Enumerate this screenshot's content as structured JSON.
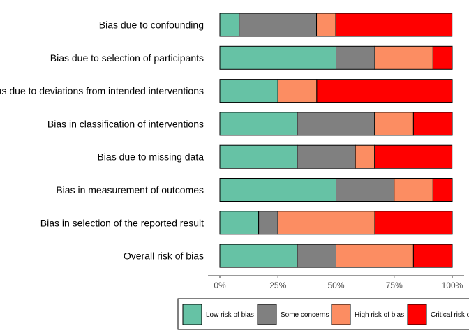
{
  "chart_data": {
    "type": "bar",
    "orientation": "horizontal",
    "stacked": true,
    "categories": [
      "Bias due to confounding",
      "Bias due to selection of participants",
      "Bias due to deviations from intended interventions",
      "Bias in classification of interventions",
      "Bias due to missing data",
      "Bias in measurement of outcomes",
      "Bias in selection of the reported result",
      "Overall risk of bias"
    ],
    "series": [
      {
        "name": "Low risk of bias",
        "color": "#66c2a5",
        "values": [
          8.3,
          50,
          25,
          33.3,
          33.3,
          50,
          16.7,
          33.3
        ]
      },
      {
        "name": "Some concerns",
        "color": "#808080",
        "values": [
          33.3,
          16.7,
          0,
          33.3,
          25,
          25,
          8.3,
          16.7
        ]
      },
      {
        "name": "High risk of bias",
        "color": "#fc8d62",
        "values": [
          8.3,
          25,
          16.7,
          16.7,
          8.3,
          16.7,
          41.7,
          33.3
        ]
      },
      {
        "name": "Critical risk of bias",
        "color": "#ff0000",
        "values": [
          50,
          8.3,
          58.3,
          16.7,
          33.3,
          8.3,
          33.3,
          16.7
        ]
      }
    ],
    "xlim": [
      0,
      100
    ],
    "xticks": [
      {
        "value": 0,
        "label": "0%"
      },
      {
        "value": 25,
        "label": "25%"
      },
      {
        "value": 50,
        "label": "50%"
      },
      {
        "value": 75,
        "label": "75%"
      },
      {
        "value": 100,
        "label": "100%"
      }
    ],
    "grid": false,
    "legend_position": "bottom"
  }
}
